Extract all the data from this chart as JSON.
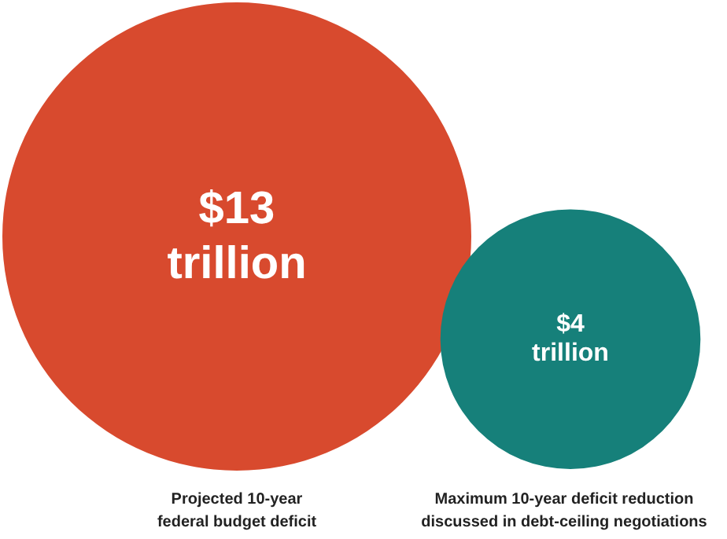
{
  "chart_data": {
    "type": "other",
    "categories": [
      "Projected 10-year\nfederal budget deficit",
      "Maximum 10-year deficit reduction\ndiscussed in debt-ceiling negotiations"
    ],
    "values": [
      13,
      4
    ],
    "colors": [
      "#d84a2e",
      "#16807a"
    ],
    "value_labels": [
      "$13\ntrillion",
      "$4\ntrillion"
    ]
  }
}
